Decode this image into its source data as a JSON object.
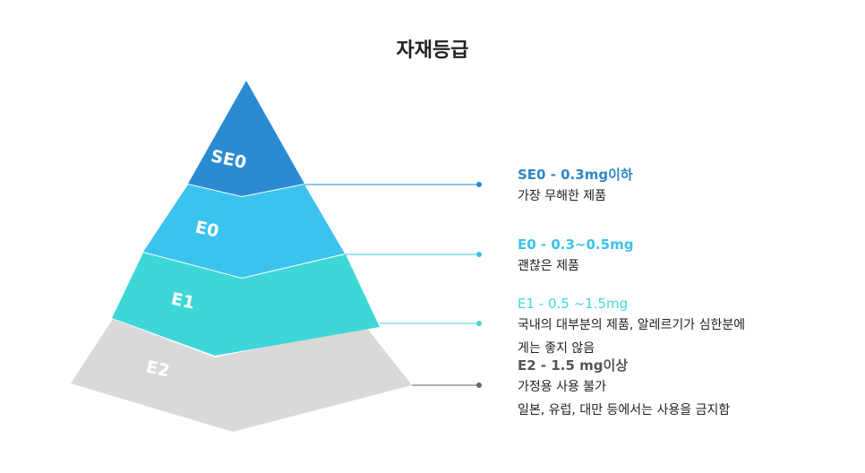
{
  "title": "자재등급",
  "colors": {
    "se0": "#2c8ad2",
    "e0": "#3bc3ed",
    "e1": "#3ed7d7",
    "e2": "#d9d9d9",
    "leader_se0": "#2c8ad2",
    "leader_e0": "#3bc3ed",
    "leader_e1": "#3ed7d7",
    "leader_e2": "#666666"
  },
  "tiers": [
    {
      "label": "SE0",
      "heading": "SE0 - 0.3mg이하",
      "heading_color": "#2f86c6",
      "lines": [
        "가장 무해한 제품"
      ]
    },
    {
      "label": "E0",
      "heading": "E0 - 0.3~0.5mg",
      "heading_color": "#3cc3ea",
      "lines": [
        "괜찮은 제품"
      ]
    },
    {
      "label": "E1",
      "heading": "E1 - 0.5 ~1.5mg",
      "heading_color": "#44d8d5",
      "lines": [
        "국내의 대부분의 제품, 알레르기가 심한분에",
        "게는 좋지 않음"
      ]
    },
    {
      "label": "E2",
      "heading": "E2 - 1.5 mg이상",
      "heading_color": "#555555",
      "lines": [
        "가정용 사용 불가",
        "일본, 유럽, 대만 등에서는 사용을 금지함"
      ]
    }
  ]
}
